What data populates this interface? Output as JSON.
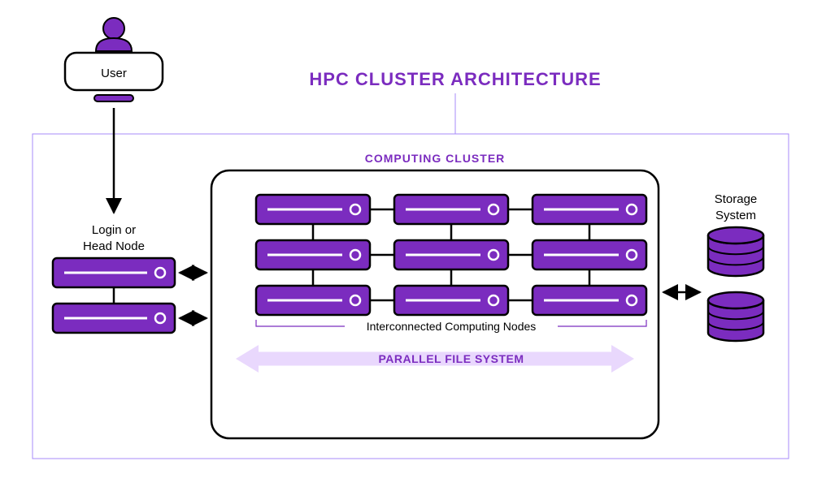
{
  "type": "infographic",
  "title": "HPC CLUSTER ARCHITECTURE",
  "title_fontsize": 22,
  "title_color": "#7b2cbf",
  "background_color": "#ffffff",
  "user": {
    "label": "User",
    "label_fontsize": 15,
    "label_color": "#000000",
    "icon_fill": "#7b2cbf",
    "icon_stroke": "#000000"
  },
  "head_node": {
    "label_line1": "Login or",
    "label_line2": "Head Node",
    "label_fontsize": 15,
    "label_color": "#000000",
    "node_fill": "#7b2cbf",
    "node_stroke": "#000000",
    "indicator_fill": "#ffffff"
  },
  "computing_cluster": {
    "heading": "COMPUTING CLUSTER",
    "heading_fontsize": 14,
    "heading_color": "#7b2cbf",
    "border_color": "#000000",
    "border_radius": 22,
    "border_width": 2.5,
    "nodes_label": "Interconnected Computing Nodes",
    "nodes_label_fontsize": 14,
    "nodes_label_color": "#000000",
    "grid": {
      "rows": 3,
      "cols": 3
    },
    "node_fill": "#7b2cbf",
    "node_stroke": "#000000",
    "indicator_fill": "#ffffff",
    "bracket_color": "#7b2cbf",
    "filesystem": {
      "label": "PARALLEL FILE SYSTEM",
      "label_fontsize": 14,
      "label_color": "#7b2cbf",
      "arrow_fill": "#e9d8fd"
    }
  },
  "storage": {
    "label_line1": "Storage",
    "label_line2": "System",
    "label_fontsize": 15,
    "label_color": "#000000",
    "disk_fill": "#7b2cbf",
    "disk_stroke": "#000000"
  },
  "outer_box": {
    "stroke": "#a78bfa",
    "stroke_width": 1
  },
  "connector": {
    "stroke": "#000000",
    "stroke_width": 2.5,
    "arrow_fill": "#000000"
  }
}
